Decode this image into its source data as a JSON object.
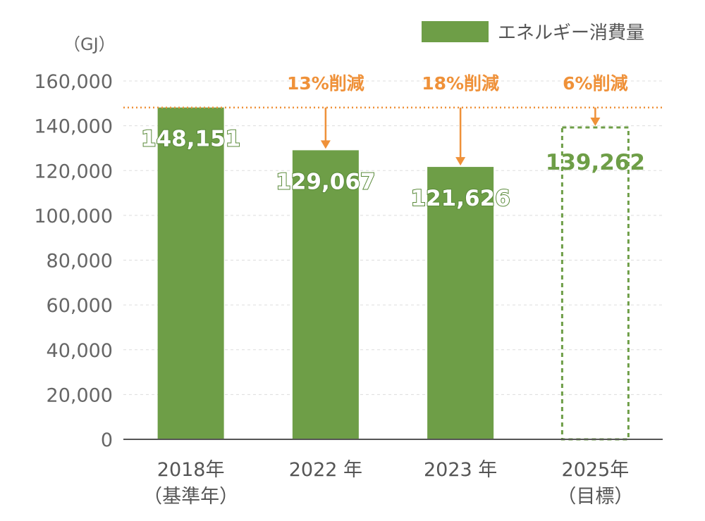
{
  "chart_data": {
    "type": "bar",
    "unit": "（GJ）",
    "categories": [
      {
        "line1": "2018年",
        "line2": "（基準年）"
      },
      {
        "line1": "2022 年",
        "line2": ""
      },
      {
        "line1": "2023 年",
        "line2": ""
      },
      {
        "line1": "2025年",
        "line2": "（目標）"
      }
    ],
    "series": [
      {
        "name": "エネルギー消費量",
        "values": [
          148151,
          129067,
          121626,
          139262
        ]
      }
    ],
    "value_labels": [
      "148,151",
      "129,067",
      "121,626",
      "139,262"
    ],
    "target_flags": [
      false,
      false,
      false,
      true
    ],
    "reductions": [
      "",
      "13%削減",
      "18%削減",
      "6%削減"
    ],
    "baseline": 148151,
    "ylim": [
      0,
      160000
    ],
    "yticks": [
      0,
      20000,
      40000,
      60000,
      80000,
      100000,
      120000,
      140000,
      160000
    ],
    "ytick_labels": [
      "0",
      "20,000",
      "40,000",
      "60,000",
      "80,000",
      "100,000",
      "120,000",
      "140,000",
      "160,000"
    ],
    "grid": true,
    "legend_position": "top-right",
    "colors": {
      "bar": "#6e9e47",
      "target": "#6e9e47",
      "reduction": "#ef9139",
      "grid": "#dddddd",
      "axis": "#555555"
    }
  }
}
